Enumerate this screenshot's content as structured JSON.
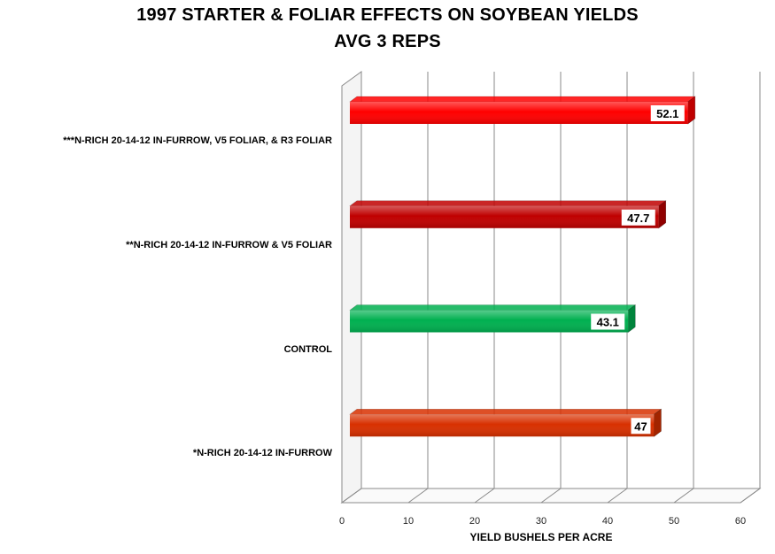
{
  "chart_data": {
    "type": "bar",
    "orientation": "horizontal",
    "title": "1997 STARTER & FOLIAR EFFECTS ON SOYBEAN YIELDS",
    "subtitle": "AVG 3 REPS",
    "xlabel": "YIELD BUSHELS PER ACRE",
    "ylabel": "",
    "xlim": [
      0,
      60
    ],
    "ticks": [
      "0",
      "10",
      "20",
      "30",
      "40",
      "50",
      "60"
    ],
    "grid": true,
    "categories": [
      "***N-RICH 20-14-12 IN-FURROW, V5 FOLIAR, & R3 FOLIAR",
      "**N-RICH 20-14-12 IN-FURROW & V5 FOLIAR",
      "CONTROL",
      "*N-RICH 20-14-12 IN-FURROW"
    ],
    "values": [
      52.1,
      47.7,
      43.1,
      47
    ],
    "data_labels": [
      "52.1",
      "47.7",
      "43.1",
      "47"
    ],
    "colors": [
      "#ff0000",
      "#c00000",
      "#00b050",
      "#d83000"
    ]
  }
}
